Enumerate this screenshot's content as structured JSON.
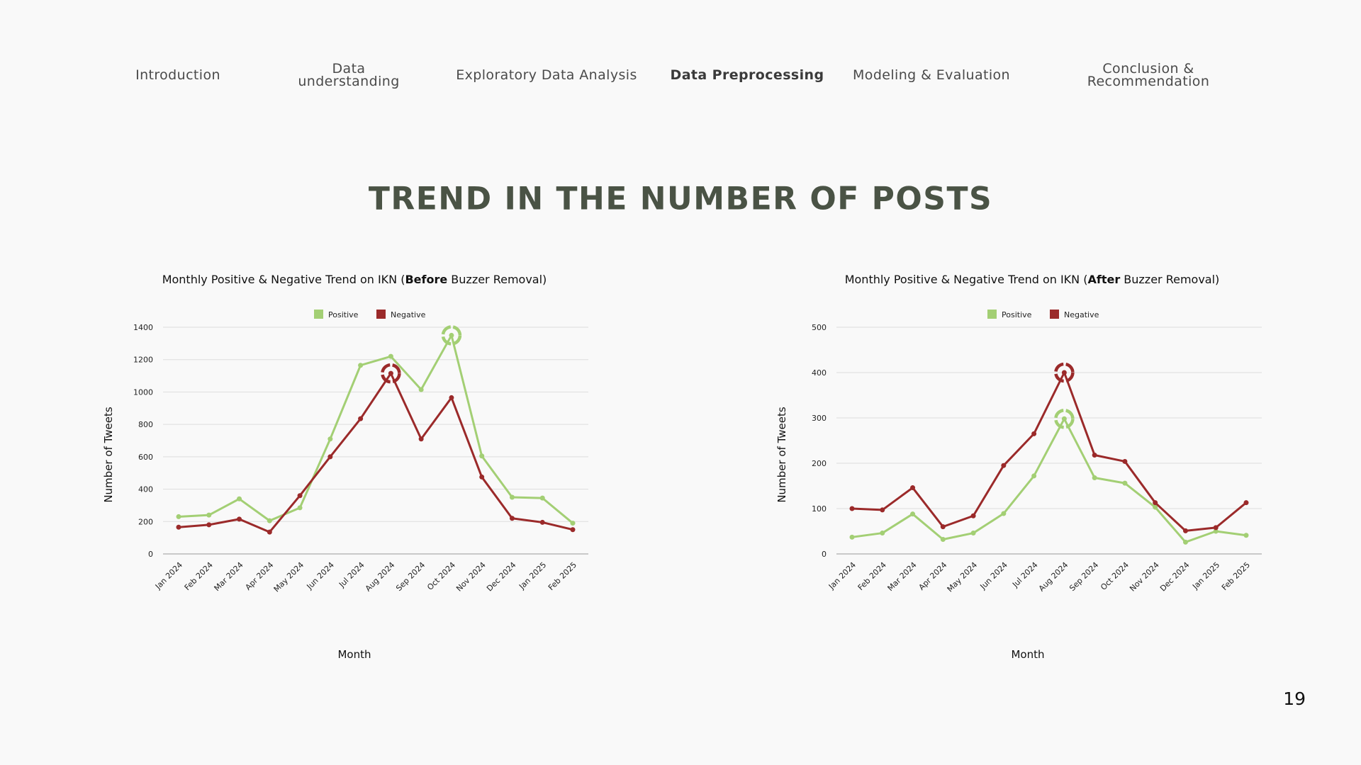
{
  "nav": {
    "items": [
      {
        "lines": [
          "Introduction"
        ],
        "active": false
      },
      {
        "lines": [
          "Data",
          "understanding"
        ],
        "active": false
      },
      {
        "lines": [
          "Exploratory Data Analysis"
        ],
        "active": false
      },
      {
        "lines": [
          "Data Preprocessing"
        ],
        "active": true
      },
      {
        "lines": [
          "Modeling & Evaluation"
        ],
        "active": false
      },
      {
        "lines": [
          "Conclusion &",
          "Recommendation"
        ],
        "active": false
      }
    ]
  },
  "slide": {
    "title": "TREND IN THE NUMBER OF POSTS",
    "page_number": "19"
  },
  "colors": {
    "positive": "#a3cf74",
    "negative": "#9b2a2a",
    "grid": "#dddddd",
    "axis": "#999999"
  },
  "chart_data": [
    {
      "type": "line",
      "title_pre": "Monthly Positive & Negative Trend on IKN (",
      "title_bold": "Before",
      "title_post": " Buzzer Removal)",
      "xlabel": "Month",
      "ylabel": "Number of Tweets",
      "ylim": [
        0,
        1400
      ],
      "yticks": [
        0,
        200,
        400,
        600,
        800,
        1000,
        1200,
        1400
      ],
      "legend": "top-center",
      "grid": true,
      "categories": [
        "Jan 2024",
        "Feb 2024",
        "Mar 2024",
        "Apr 2024",
        "May 2024",
        "Jun 2024",
        "Jul 2024",
        "Aug 2024",
        "Sep 2024",
        "Oct 2024",
        "Nov 2024",
        "Dec 2024",
        "Jan 2025",
        "Feb 2025"
      ],
      "series": [
        {
          "name": "Positive",
          "values": [
            230,
            240,
            340,
            205,
            285,
            710,
            1165,
            1220,
            1015,
            1350,
            605,
            350,
            345,
            190
          ]
        },
        {
          "name": "Negative",
          "values": [
            165,
            180,
            215,
            135,
            360,
            600,
            835,
            1115,
            710,
            965,
            475,
            220,
            195,
            150
          ]
        }
      ],
      "highlights": [
        {
          "series": "Positive",
          "category": "Oct 2024"
        },
        {
          "series": "Negative",
          "category": "Aug 2024"
        }
      ]
    },
    {
      "type": "line",
      "title_pre": "Monthly Positive & Negative Trend on IKN (",
      "title_bold": "After",
      "title_post": " Buzzer Removal)",
      "xlabel": "Month",
      "ylabel": "Number of Tweets",
      "ylim": [
        0,
        500
      ],
      "yticks": [
        0,
        100,
        200,
        300,
        400,
        500
      ],
      "legend": "top-center",
      "grid": true,
      "categories": [
        "Jan 2024",
        "Feb 2024",
        "Mar 2024",
        "Apr 2024",
        "May 2024",
        "Jun 2024",
        "Jul 2024",
        "Aug 2024",
        "Sep 2024",
        "Oct 2024",
        "Nov 2024",
        "Dec 2024",
        "Jan 2025",
        "Feb 2025"
      ],
      "series": [
        {
          "name": "Positive",
          "values": [
            37,
            46,
            88,
            32,
            46,
            89,
            172,
            298,
            168,
            156,
            103,
            26,
            50,
            41
          ]
        },
        {
          "name": "Negative",
          "values": [
            100,
            97,
            146,
            60,
            84,
            195,
            265,
            400,
            218,
            204,
            113,
            51,
            58,
            113
          ]
        }
      ],
      "highlights": [
        {
          "series": "Negative",
          "category": "Aug 2024"
        },
        {
          "series": "Positive",
          "category": "Aug 2024"
        }
      ]
    }
  ]
}
